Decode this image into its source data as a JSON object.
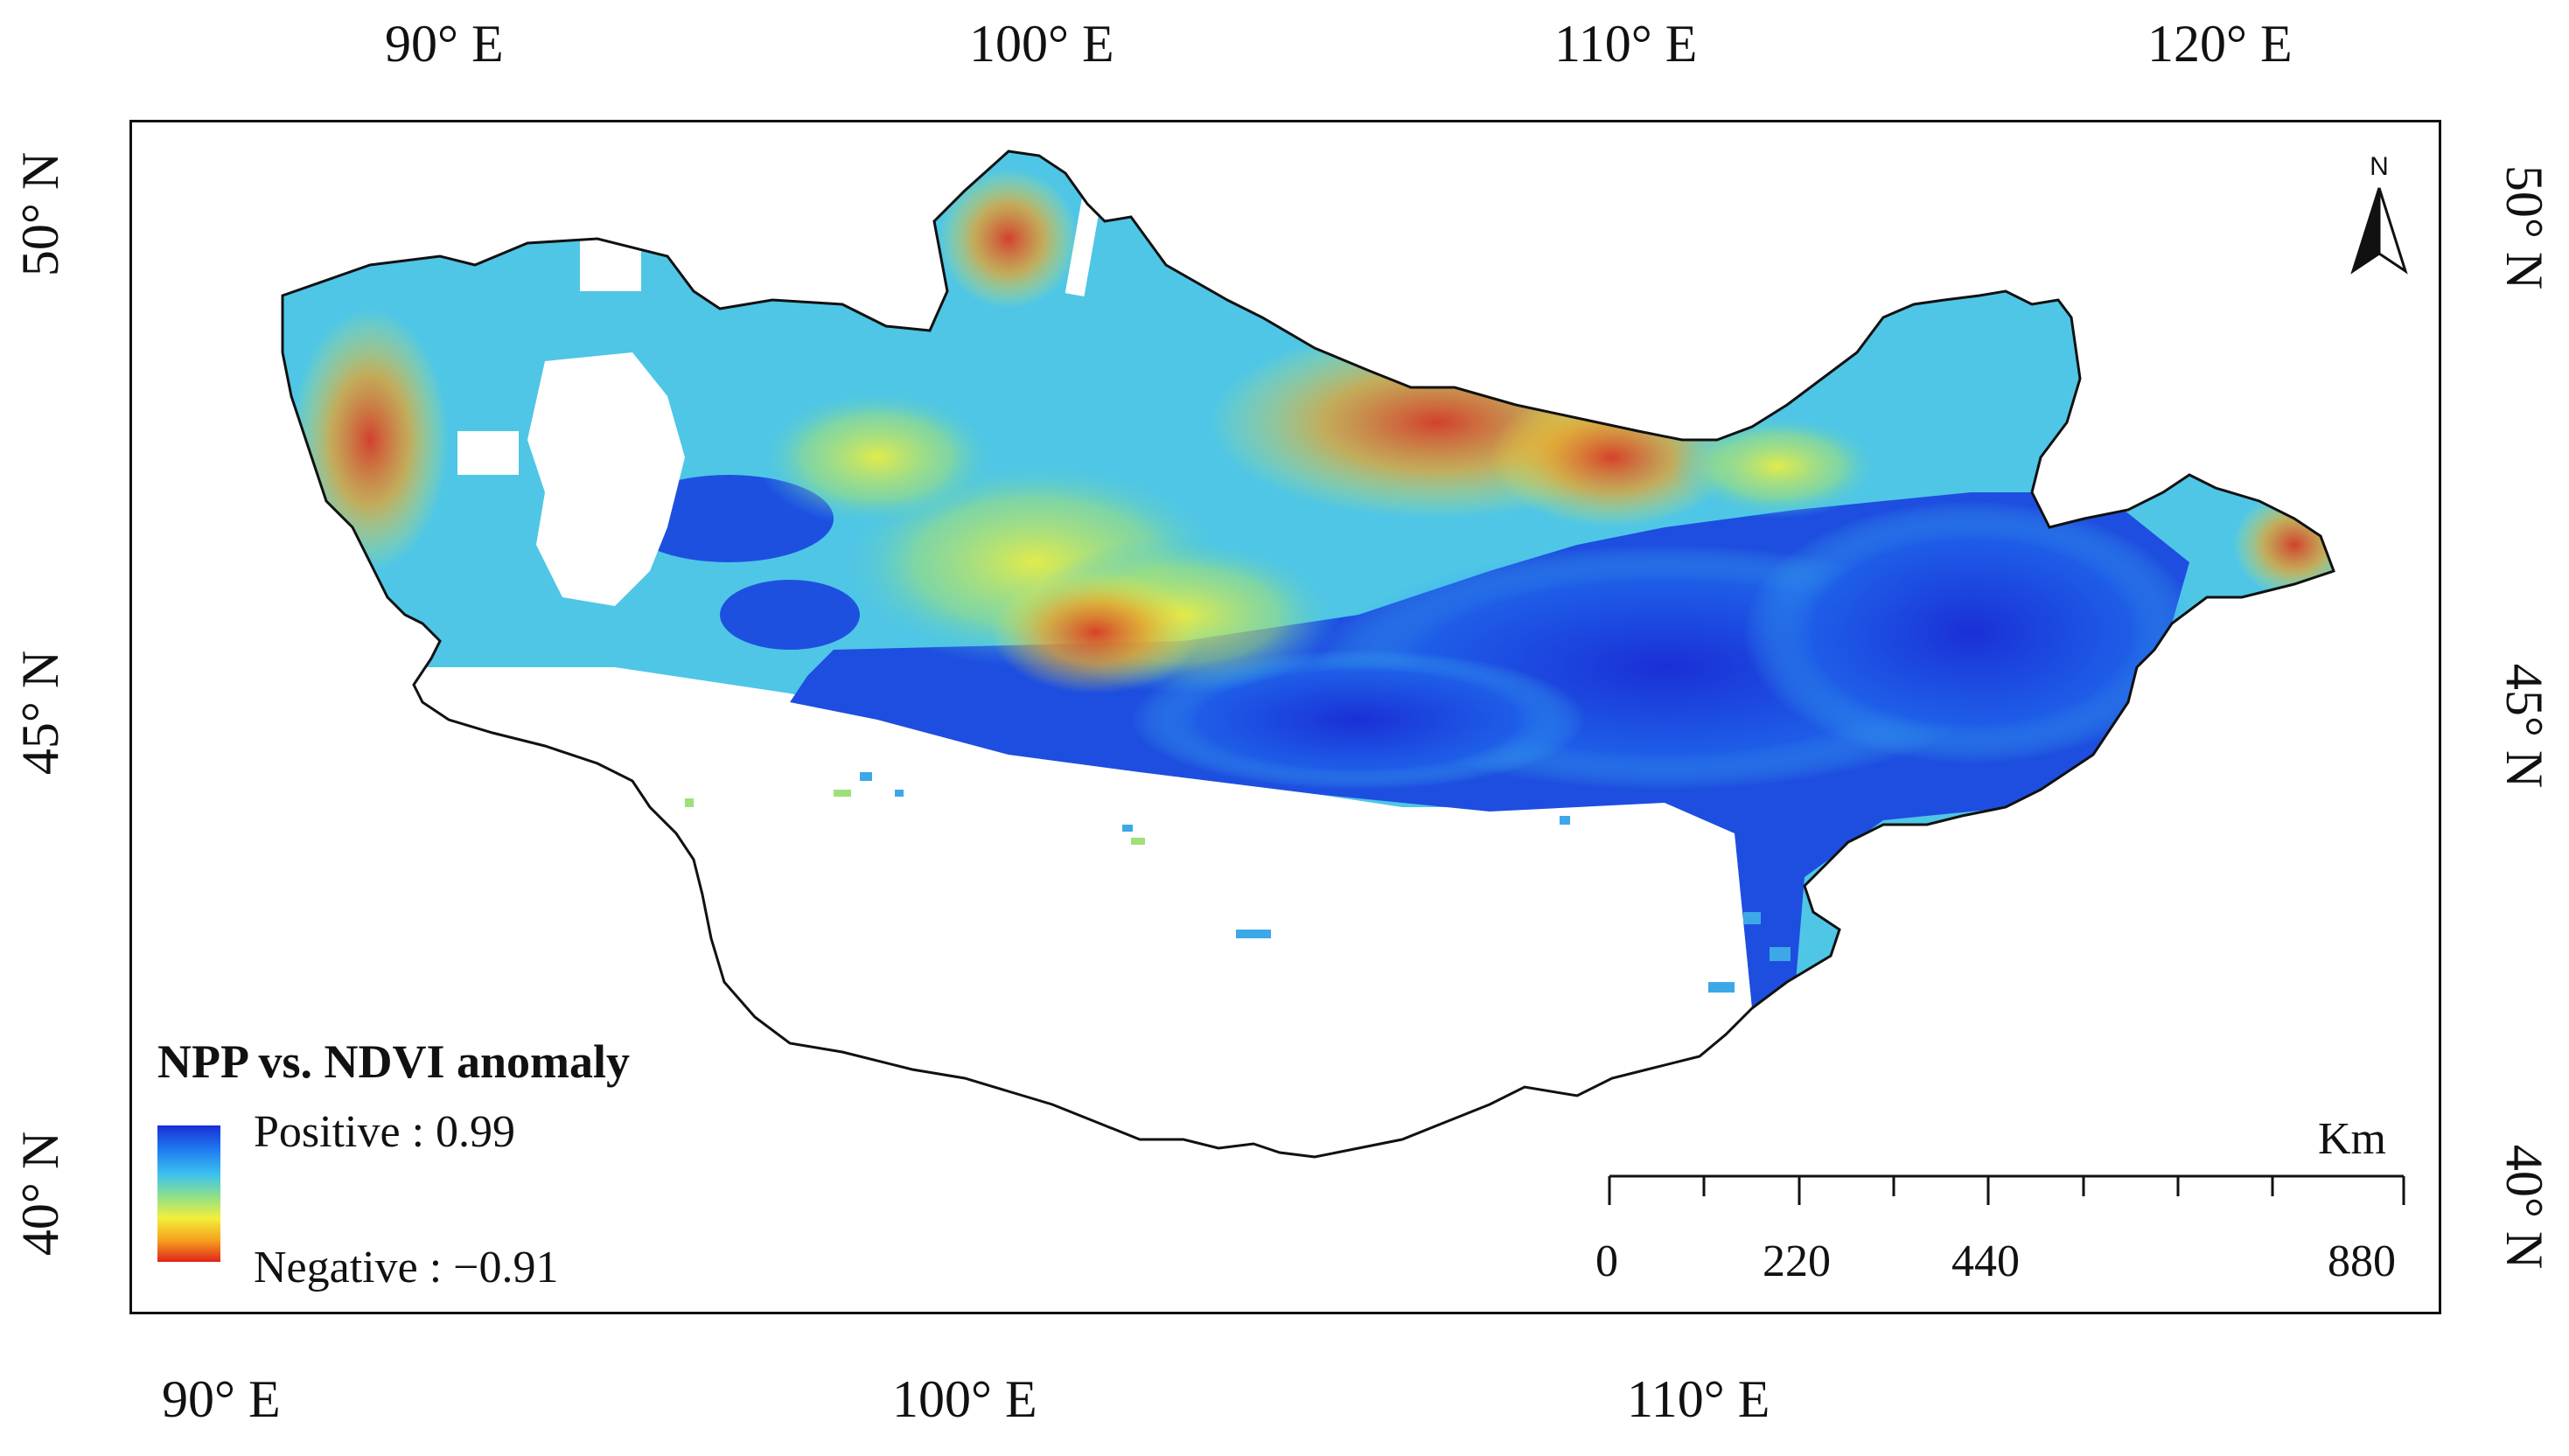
{
  "map": {
    "top_lon_labels": [
      "90° E",
      "100° E",
      "110° E",
      "120° E"
    ],
    "bottom_lon_labels": [
      "90° E",
      "100° E",
      "110° E"
    ],
    "left_lat_labels": [
      "50° N",
      "45° N",
      "40° N"
    ],
    "right_lat_labels": [
      "50° N",
      "45° N",
      "40° N"
    ]
  },
  "legend": {
    "title": "NPP vs. NDVI anomaly",
    "positive_label": "Positive : 0.99",
    "negative_label": "Negative : −0.91",
    "colors": [
      "#1a2fd6",
      "#1e7cf0",
      "#3dc2f0",
      "#8fe08a",
      "#f2ef3a",
      "#f6a21f",
      "#e0251a"
    ]
  },
  "scale_bar": {
    "unit": "Km",
    "ticks": [
      "0",
      "220",
      "440",
      "880"
    ]
  },
  "north_arrow": {
    "letter": "N",
    "icon": "north-arrow-icon"
  }
}
